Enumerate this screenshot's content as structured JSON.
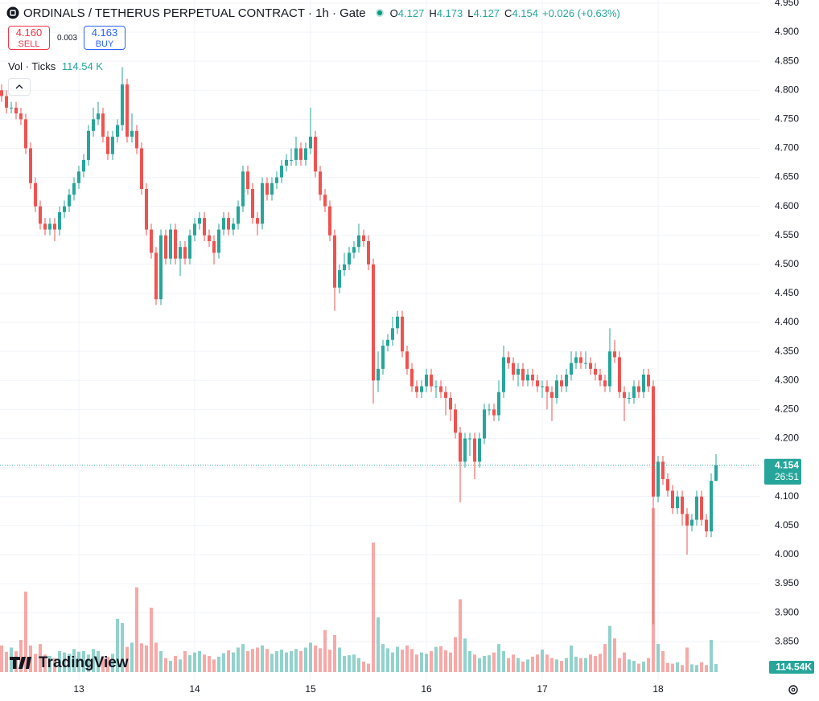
{
  "chart_data": {
    "type": "candlestick",
    "title": "ORDINALS / TETHERUS PERPETUAL CONTRACT · 1h · Gate",
    "legend_labels": {
      "o": "O",
      "h": "H",
      "l": "L",
      "c": "C"
    },
    "change": "+0.026 (+0.63%)",
    "sell_price": "4.160",
    "sell_label": "SELL",
    "spread": "0.003",
    "buy_price": "4.163",
    "buy_label": "BUY",
    "volume_title": "Vol · Ticks",
    "volume_label": "114.54 K",
    "volume_badge": "114.54K",
    "countdown": "26:51",
    "watermark": "TradingView",
    "up_color": "#26a69a",
    "down_color": "#ef5350",
    "grid": true,
    "xlim": [
      -0.333,
      157.167
    ],
    "xticks": [
      {
        "value": 16,
        "label": "13"
      },
      {
        "value": 40,
        "label": "14"
      },
      {
        "value": 64,
        "label": "15"
      },
      {
        "value": 88,
        "label": "16"
      },
      {
        "value": 112,
        "label": "17"
      },
      {
        "value": 136,
        "label": "18"
      }
    ],
    "ylim": [
      3.781,
      4.9555
    ],
    "yticks": [
      {
        "value": 4.95,
        "label": "4.950"
      },
      {
        "value": 4.9,
        "label": "4.900"
      },
      {
        "value": 4.85,
        "label": "4.850"
      },
      {
        "value": 4.8,
        "label": "4.800"
      },
      {
        "value": 4.75,
        "label": "4.750"
      },
      {
        "value": 4.7,
        "label": "4.700"
      },
      {
        "value": 4.65,
        "label": "4.650"
      },
      {
        "value": 4.6,
        "label": "4.600"
      },
      {
        "value": 4.55,
        "label": "4.550"
      },
      {
        "value": 4.5,
        "label": "4.500"
      },
      {
        "value": 4.45,
        "label": "4.450"
      },
      {
        "value": 4.4,
        "label": "4.400"
      },
      {
        "value": 4.35,
        "label": "4.350"
      },
      {
        "value": 4.3,
        "label": "4.300"
      },
      {
        "value": 4.25,
        "label": "4.250"
      },
      {
        "value": 4.2,
        "label": "4.200"
      },
      {
        "value": 4.15,
        "label": "4.150"
      },
      {
        "value": 4.1,
        "label": "4.100"
      },
      {
        "value": 4.05,
        "label": "4.050"
      },
      {
        "value": 4.0,
        "label": "4.000"
      },
      {
        "value": 3.95,
        "label": "3.950"
      },
      {
        "value": 3.9,
        "label": "3.900"
      },
      {
        "value": 3.85,
        "label": "3.850"
      }
    ],
    "volume_ylim": [
      0,
      2400
    ],
    "open": [
      4.8,
      4.79,
      4.77,
      4.77,
      4.76,
      4.75,
      4.7,
      4.64,
      4.6,
      4.57,
      4.56,
      4.57,
      4.56,
      4.59,
      4.6,
      4.62,
      4.64,
      4.66,
      4.68,
      4.73,
      4.75,
      4.76,
      4.72,
      4.69,
      4.72,
      4.74,
      4.81,
      4.72,
      4.73,
      4.7,
      4.63,
      4.56,
      4.52,
      4.44,
      4.55,
      4.51,
      4.56,
      4.51,
      4.53,
      4.51,
      4.55,
      4.57,
      4.58,
      4.55,
      4.54,
      4.52,
      4.56,
      4.58,
      4.56,
      4.57,
      4.6,
      4.66,
      4.63,
      4.58,
      4.57,
      4.64,
      4.62,
      4.64,
      4.65,
      4.67,
      4.68,
      4.68,
      4.7,
      4.68,
      4.7,
      4.72,
      4.66,
      4.62,
      4.6,
      4.55,
      4.46,
      4.49,
      4.5,
      4.52,
      4.53,
      4.55,
      4.54,
      4.5,
      4.3,
      4.32,
      4.36,
      4.37,
      4.39,
      4.41,
      4.35,
      4.32,
      4.29,
      4.28,
      4.29,
      4.31,
      4.29,
      4.29,
      4.28,
      4.27,
      4.25,
      4.21,
      4.16,
      4.2,
      4.2,
      4.16,
      4.2,
      4.25,
      4.25,
      4.24,
      4.28,
      4.34,
      4.33,
      4.31,
      4.32,
      4.3,
      4.31,
      4.3,
      4.29,
      4.29,
      4.28,
      4.27,
      4.3,
      4.29,
      4.31,
      4.33,
      4.34,
      4.33,
      4.33,
      4.32,
      4.31,
      4.3,
      4.29,
      4.35,
      4.34,
      4.28,
      4.27,
      4.27,
      4.29,
      4.28,
      4.31,
      4.29,
      4.1,
      4.16,
      4.13,
      4.11,
      4.08,
      4.1,
      4.07,
      4.05,
      4.06,
      4.1,
      4.06,
      4.04,
      4.127
    ],
    "high": [
      4.81,
      4.8,
      4.78,
      4.78,
      4.77,
      4.76,
      4.71,
      4.65,
      4.61,
      4.58,
      4.58,
      4.58,
      4.6,
      4.61,
      4.63,
      4.65,
      4.67,
      4.69,
      4.74,
      4.77,
      4.78,
      4.77,
      4.73,
      4.73,
      4.75,
      4.84,
      4.82,
      4.76,
      4.74,
      4.71,
      4.64,
      4.57,
      4.53,
      4.56,
      4.56,
      4.57,
      4.57,
      4.54,
      4.54,
      4.56,
      4.58,
      4.59,
      4.59,
      4.56,
      4.55,
      4.57,
      4.59,
      4.59,
      4.58,
      4.61,
      4.67,
      4.67,
      4.64,
      4.59,
      4.65,
      4.65,
      4.65,
      4.66,
      4.68,
      4.69,
      4.7,
      4.72,
      4.71,
      4.71,
      4.77,
      4.73,
      4.67,
      4.63,
      4.61,
      4.56,
      4.5,
      4.52,
      4.53,
      4.54,
      4.57,
      4.56,
      4.55,
      4.51,
      4.35,
      4.37,
      4.38,
      4.41,
      4.42,
      4.42,
      4.36,
      4.33,
      4.3,
      4.3,
      4.32,
      4.32,
      4.3,
      4.3,
      4.29,
      4.28,
      4.26,
      4.22,
      4.21,
      4.21,
      4.21,
      4.21,
      4.26,
      4.26,
      4.26,
      4.3,
      4.36,
      4.35,
      4.34,
      4.33,
      4.33,
      4.32,
      4.32,
      4.31,
      4.3,
      4.3,
      4.29,
      4.31,
      4.31,
      4.32,
      4.35,
      4.35,
      4.35,
      4.35,
      4.34,
      4.33,
      4.32,
      4.31,
      4.39,
      4.37,
      4.35,
      4.29,
      4.28,
      4.3,
      4.3,
      4.32,
      4.32,
      4.3,
      4.17,
      4.17,
      4.14,
      4.12,
      4.11,
      4.11,
      4.08,
      4.07,
      4.11,
      4.11,
      4.07,
      4.14,
      4.173
    ],
    "low": [
      4.78,
      4.76,
      4.76,
      4.75,
      4.74,
      4.69,
      4.63,
      4.59,
      4.56,
      4.55,
      4.55,
      4.54,
      4.55,
      4.58,
      4.59,
      4.61,
      4.63,
      4.65,
      4.67,
      4.72,
      4.74,
      4.71,
      4.68,
      4.68,
      4.71,
      4.73,
      4.71,
      4.71,
      4.69,
      4.62,
      4.55,
      4.51,
      4.43,
      4.43,
      4.5,
      4.5,
      4.5,
      4.48,
      4.5,
      4.5,
      4.54,
      4.56,
      4.54,
      4.53,
      4.5,
      4.51,
      4.55,
      4.55,
      4.55,
      4.56,
      4.59,
      4.62,
      4.57,
      4.55,
      4.56,
      4.61,
      4.61,
      4.63,
      4.64,
      4.66,
      4.67,
      4.67,
      4.67,
      4.67,
      4.69,
      4.65,
      4.61,
      4.59,
      4.54,
      4.42,
      4.45,
      4.48,
      4.49,
      4.51,
      4.52,
      4.53,
      4.49,
      4.26,
      4.28,
      4.31,
      4.35,
      4.36,
      4.38,
      4.34,
      4.31,
      4.28,
      4.27,
      4.27,
      4.28,
      4.28,
      4.27,
      4.27,
      4.24,
      4.23,
      4.2,
      4.09,
      4.15,
      4.17,
      4.13,
      4.15,
      4.19,
      4.24,
      4.23,
      4.23,
      4.27,
      4.32,
      4.3,
      4.29,
      4.29,
      4.29,
      4.29,
      4.28,
      4.27,
      4.25,
      4.23,
      4.26,
      4.28,
      4.28,
      4.3,
      4.32,
      4.32,
      4.32,
      4.31,
      4.3,
      4.29,
      4.28,
      4.28,
      4.33,
      4.27,
      4.23,
      4.26,
      4.26,
      4.27,
      4.27,
      4.28,
      3.88,
      4.09,
      4.12,
      4.1,
      4.07,
      4.07,
      4.05,
      4.0,
      4.04,
      4.05,
      4.05,
      4.03,
      4.03,
      4.127
    ],
    "close": [
      4.79,
      4.77,
      4.77,
      4.76,
      4.75,
      4.7,
      4.64,
      4.6,
      4.57,
      4.56,
      4.57,
      4.56,
      4.59,
      4.6,
      4.62,
      4.64,
      4.66,
      4.68,
      4.73,
      4.75,
      4.76,
      4.72,
      4.69,
      4.72,
      4.74,
      4.81,
      4.72,
      4.73,
      4.7,
      4.63,
      4.56,
      4.52,
      4.44,
      4.55,
      4.51,
      4.56,
      4.51,
      4.53,
      4.51,
      4.55,
      4.57,
      4.58,
      4.55,
      4.54,
      4.52,
      4.56,
      4.58,
      4.56,
      4.57,
      4.6,
      4.66,
      4.63,
      4.58,
      4.57,
      4.64,
      4.62,
      4.64,
      4.65,
      4.67,
      4.68,
      4.68,
      4.7,
      4.68,
      4.7,
      4.72,
      4.66,
      4.62,
      4.6,
      4.55,
      4.46,
      4.49,
      4.5,
      4.52,
      4.53,
      4.55,
      4.54,
      4.5,
      4.3,
      4.32,
      4.36,
      4.37,
      4.39,
      4.41,
      4.35,
      4.32,
      4.29,
      4.28,
      4.29,
      4.31,
      4.29,
      4.29,
      4.28,
      4.27,
      4.25,
      4.21,
      4.16,
      4.2,
      4.2,
      4.16,
      4.2,
      4.25,
      4.25,
      4.24,
      4.28,
      4.34,
      4.33,
      4.31,
      4.32,
      4.3,
      4.31,
      4.3,
      4.29,
      4.29,
      4.28,
      4.27,
      4.3,
      4.29,
      4.31,
      4.33,
      4.34,
      4.33,
      4.33,
      4.32,
      4.31,
      4.3,
      4.29,
      4.35,
      4.34,
      4.28,
      4.27,
      4.27,
      4.29,
      4.28,
      4.31,
      4.29,
      4.1,
      4.16,
      4.13,
      4.11,
      4.08,
      4.1,
      4.07,
      4.05,
      4.06,
      4.1,
      4.06,
      4.04,
      4.127,
      4.154
    ],
    "volume": [
      380,
      290,
      350,
      300,
      460,
      1150,
      380,
      260,
      400,
      250,
      230,
      200,
      300,
      280,
      260,
      330,
      290,
      300,
      250,
      330,
      300,
      200,
      220,
      260,
      760,
      700,
      360,
      420,
      1210,
      410,
      380,
      920,
      420,
      300,
      200,
      160,
      230,
      180,
      300,
      240,
      280,
      300,
      250,
      230,
      180,
      220,
      270,
      310,
      280,
      350,
      400,
      300,
      330,
      350,
      380,
      330,
      260,
      300,
      320,
      280,
      300,
      330,
      300,
      350,
      420,
      380,
      340,
      600,
      320,
      530,
      350,
      230,
      240,
      250,
      200,
      150,
      120,
      1850,
      780,
      400,
      340,
      280,
      360,
      320,
      380,
      330,
      250,
      280,
      260,
      300,
      360,
      370,
      310,
      280,
      500,
      1040,
      480,
      300,
      250,
      200,
      230,
      240,
      280,
      400,
      300,
      200,
      250,
      200,
      150,
      180,
      220,
      250,
      320,
      250,
      200,
      180,
      160,
      200,
      380,
      220,
      200,
      200,
      250,
      230,
      260,
      400,
      660,
      480,
      200,
      280,
      180,
      160,
      120,
      150,
      200,
      2340,
      400,
      300,
      130,
      120,
      140,
      100,
      350,
      110,
      100,
      140,
      100,
      460,
      114.54
    ]
  }
}
